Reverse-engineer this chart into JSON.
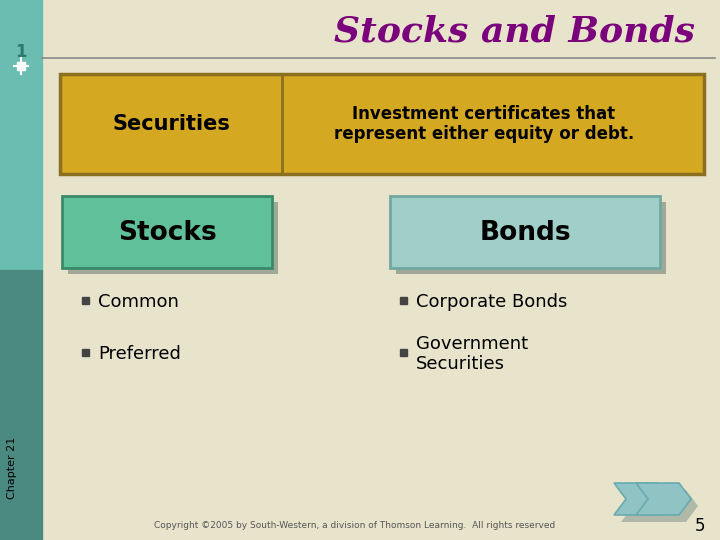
{
  "title": "Stocks and Bonds",
  "title_color": "#7B007B",
  "slide_bg": "#E8E4CC",
  "left_bar_color_top": "#5AADA0",
  "left_bar_color_bot": "#3A7A6A",
  "securities_box_color": "#D4A820",
  "securities_box_border": "#8B7020",
  "securities_label": "Securities",
  "securities_def": "Investment certificates that\nrepresent either equity or debt.",
  "stocks_box_color": "#60C09A",
  "stocks_box_border": "#3A8A6A",
  "stocks_label": "Stocks",
  "bonds_box_color": "#A0CEC8",
  "bonds_box_border": "#70A8A0",
  "bonds_label": "Bonds",
  "stocks_bullets": [
    "Common",
    "Preferred"
  ],
  "bonds_bullets": [
    "Corporate Bonds",
    "Government\nSecurities"
  ],
  "chapter_label": "Chapter 21",
  "copyright_text": "Copyright ©2005 by South-Western, a division of Thomson Learning.  All rights reserved",
  "page_number": "5",
  "slide_number": "1",
  "arrow_color": "#90C4C4",
  "arrow_shadow": "#B0B8A8",
  "bullet_color": "#444444"
}
